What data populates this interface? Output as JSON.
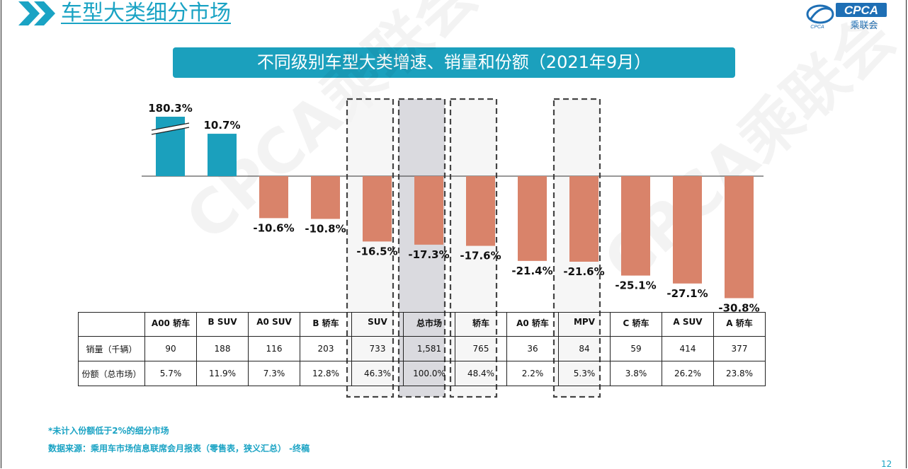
{
  "header": {
    "title": "车型大类细分市场",
    "logo_text": "CPCA",
    "logo_sub": "乘联会",
    "logo_script": "CPCA"
  },
  "banner_title": "不同级别车型大类增速、销量和份额（2021年9月）",
  "watermark": "CPCA乘联会",
  "colors": {
    "positive": "#1ba0bd",
    "negative": "#d9836a",
    "accent": "#1aa3c4"
  },
  "chart_data": {
    "type": "bar",
    "categories": [
      "A00 轿车",
      "B SUV",
      "A0 SUV",
      "B 轿车",
      "SUV",
      "总市场",
      "轿车",
      "A0 轿车",
      "MPV",
      "C 轿车",
      "A SUV",
      "A 轿车"
    ],
    "values": [
      180.3,
      10.7,
      -10.6,
      -10.8,
      -16.5,
      -17.3,
      -17.6,
      -21.4,
      -21.6,
      -25.1,
      -27.1,
      -30.8
    ],
    "value_labels": [
      "180.3%",
      "10.7%",
      "-10.6%",
      "-10.8%",
      "-16.5%",
      "-17.3%",
      "-17.6%",
      "-21.4%",
      "-21.6%",
      "-25.1%",
      "-27.1%",
      "-30.8%"
    ],
    "broken_axis_category": "A00 轿车",
    "highlighted_categories": [
      "SUV",
      "总市场",
      "轿车",
      "MPV"
    ],
    "legend": "none",
    "grid": false
  },
  "table": {
    "row_labels": [
      "销量（千辆）",
      "份额（总市场）"
    ],
    "sales": [
      "90",
      "188",
      "116",
      "203",
      "733",
      "1,581",
      "765",
      "36",
      "84",
      "59",
      "414",
      "377"
    ],
    "share": [
      "5.7%",
      "11.9%",
      "7.3%",
      "12.8%",
      "46.3%",
      "100.0%",
      "48.4%",
      "2.2%",
      "5.3%",
      "3.8%",
      "26.2%",
      "23.8%"
    ]
  },
  "notes": {
    "footnote": "*未计入份额低于2%的细分市场",
    "source": "数据来源：乘用车市场信息联席会月报表（零售表，狭义汇总）  -终稿"
  },
  "page_number": "12"
}
